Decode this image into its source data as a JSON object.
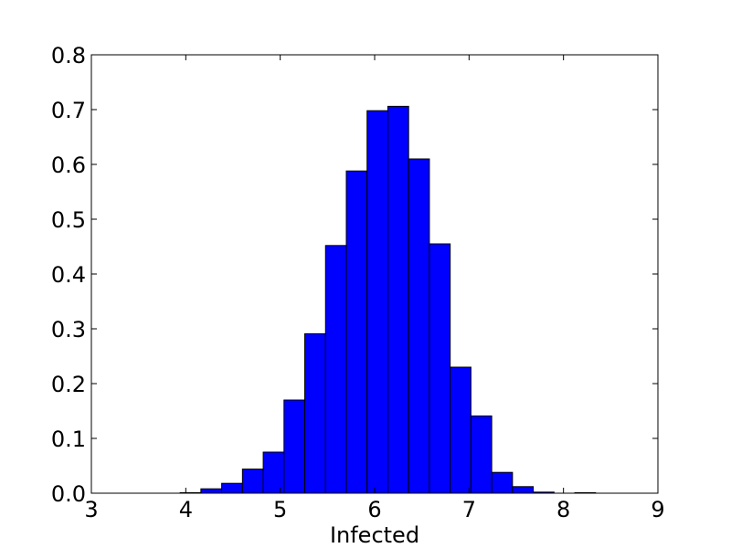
{
  "chart_data": {
    "type": "bar",
    "title": "",
    "xlabel": "Infected",
    "ylabel": "",
    "xlim": [
      3,
      9
    ],
    "ylim": [
      0,
      0.8
    ],
    "xticks": [
      "3",
      "4",
      "5",
      "6",
      "7",
      "8",
      "9"
    ],
    "yticks": [
      "0.0",
      "0.1",
      "0.2",
      "0.3",
      "0.4",
      "0.5",
      "0.6",
      "0.7",
      "0.8"
    ],
    "bar_color": "#0000ff",
    "grid": false,
    "bins": [
      {
        "x0": 3.94,
        "x1": 4.16,
        "value": 0.001
      },
      {
        "x0": 4.16,
        "x1": 4.38,
        "value": 0.008
      },
      {
        "x0": 4.38,
        "x1": 4.6,
        "value": 0.018
      },
      {
        "x0": 4.6,
        "x1": 4.82,
        "value": 0.044
      },
      {
        "x0": 4.82,
        "x1": 5.04,
        "value": 0.075
      },
      {
        "x0": 5.04,
        "x1": 5.26,
        "value": 0.17
      },
      {
        "x0": 5.26,
        "x1": 5.48,
        "value": 0.291
      },
      {
        "x0": 5.48,
        "x1": 5.7,
        "value": 0.452
      },
      {
        "x0": 5.7,
        "x1": 5.92,
        "value": 0.588
      },
      {
        "x0": 5.92,
        "x1": 6.14,
        "value": 0.698
      },
      {
        "x0": 6.14,
        "x1": 6.36,
        "value": 0.706
      },
      {
        "x0": 6.36,
        "x1": 6.58,
        "value": 0.61
      },
      {
        "x0": 6.58,
        "x1": 6.8,
        "value": 0.455
      },
      {
        "x0": 6.8,
        "x1": 7.02,
        "value": 0.23
      },
      {
        "x0": 7.02,
        "x1": 7.24,
        "value": 0.141
      },
      {
        "x0": 7.24,
        "x1": 7.46,
        "value": 0.038
      },
      {
        "x0": 7.46,
        "x1": 7.68,
        "value": 0.012
      },
      {
        "x0": 7.68,
        "x1": 7.9,
        "value": 0.002
      },
      {
        "x0": 8.12,
        "x1": 8.34,
        "value": 0.001
      }
    ]
  }
}
